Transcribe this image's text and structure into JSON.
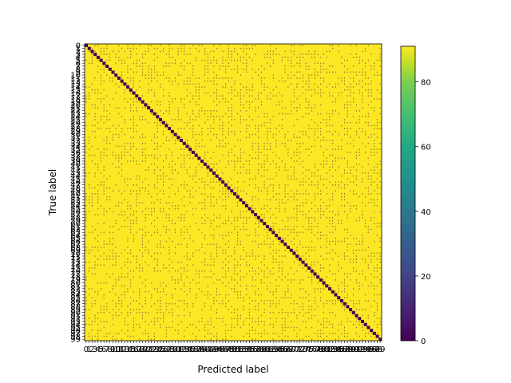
{
  "chart_data": {
    "type": "heatmap",
    "title": "",
    "xlabel": "Predicted label",
    "ylabel": "True label",
    "n_classes": 100,
    "class_labels_first": 0,
    "class_labels_last": 99,
    "diagonal_value": 0,
    "off_diagonal_value": 91,
    "colormap": "viridis",
    "colorbar": {
      "min": 0,
      "max": 91,
      "ticks": [
        0,
        20,
        40,
        60,
        80
      ],
      "tick_labels": [
        "0",
        "20",
        "40",
        "60",
        "80"
      ]
    },
    "cell_annotations": "per-cell counts (illegible at this size)",
    "colors": {
      "low": "#440154",
      "mid": "#21918c",
      "high": "#fde725"
    }
  }
}
